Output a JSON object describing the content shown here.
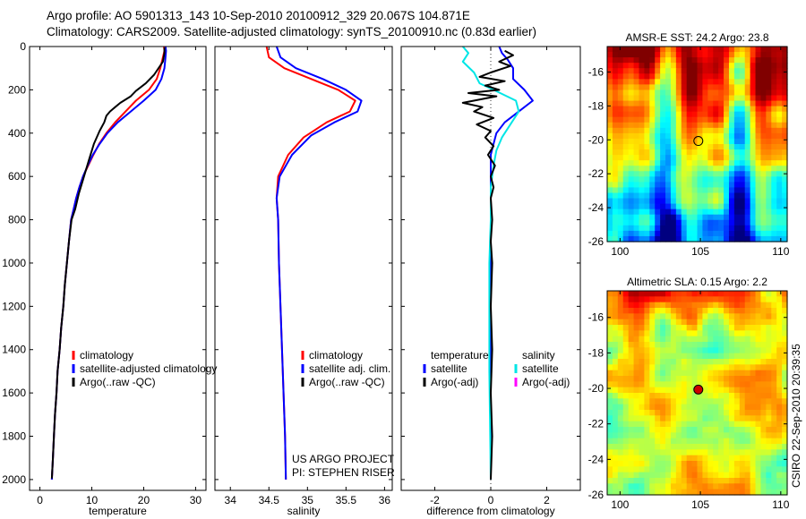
{
  "header": {
    "line1": "Argo profile: AO 5901313_143 10-Sep-2010 20100912_329 20.067S 104.871E",
    "line2": "Climatology: CARS2009. Satellite-adjusted climatology: synTS_20100910.nc (0.83d earlier)"
  },
  "footer_stamp": "CSIRO 22-Sep-2010 20:39:35",
  "colors": {
    "red": "#ff0000",
    "blue": "#0000ff",
    "black": "#000000",
    "cyan": "#00e6e6",
    "magenta": "#ff00ff"
  },
  "chart_data": [
    {
      "type": "line",
      "name": "temperature-profile",
      "xlabel": "temperature",
      "ylabel": "",
      "xlim": [
        -2,
        32
      ],
      "ylim": [
        2050,
        0
      ],
      "y_reversed": true,
      "xticks": [
        0,
        10,
        20,
        30
      ],
      "yticks": [
        0,
        200,
        400,
        600,
        800,
        1000,
        1200,
        1400,
        1600,
        1800,
        2000
      ],
      "legend": {
        "position": "lower-right",
        "entries": [
          {
            "label": "climatology",
            "color": "#ff0000"
          },
          {
            "label": "satellite-adjusted climatology",
            "color": "#0000ff"
          },
          {
            "label": "Argo(..raw -QC)",
            "color": "#000000"
          }
        ]
      },
      "series": [
        {
          "name": "climatology",
          "color": "#ff0000",
          "points": [
            [
              23.9,
              0
            ],
            [
              24.0,
              20
            ],
            [
              23.7,
              50
            ],
            [
              23.2,
              100
            ],
            [
              22.5,
              150
            ],
            [
              21.0,
              200
            ],
            [
              18.5,
              250
            ],
            [
              16.5,
              300
            ],
            [
              14.5,
              350
            ],
            [
              12.8,
              400
            ],
            [
              11.4,
              450
            ],
            [
              10.3,
              500
            ],
            [
              9.3,
              550
            ],
            [
              8.3,
              600
            ],
            [
              7.6,
              650
            ],
            [
              7.0,
              700
            ],
            [
              6.5,
              750
            ],
            [
              6.0,
              800
            ],
            [
              5.6,
              900
            ],
            [
              5.2,
              1000
            ],
            [
              4.8,
              1100
            ],
            [
              4.5,
              1200
            ],
            [
              4.1,
              1300
            ],
            [
              3.8,
              1400
            ],
            [
              3.4,
              1500
            ],
            [
              3.2,
              1600
            ],
            [
              2.9,
              1700
            ],
            [
              2.7,
              1800
            ],
            [
              2.5,
              1900
            ],
            [
              2.3,
              2000
            ]
          ]
        },
        {
          "name": "satellite-adjusted climatology",
          "color": "#0000ff",
          "points": [
            [
              24.2,
              0
            ],
            [
              24.3,
              20
            ],
            [
              24.2,
              50
            ],
            [
              24.0,
              100
            ],
            [
              23.4,
              150
            ],
            [
              22.3,
              200
            ],
            [
              20.0,
              250
            ],
            [
              17.5,
              300
            ],
            [
              15.0,
              350
            ],
            [
              13.0,
              400
            ],
            [
              11.5,
              450
            ],
            [
              10.2,
              500
            ],
            [
              9.2,
              550
            ],
            [
              8.3,
              600
            ],
            [
              7.6,
              650
            ],
            [
              7.0,
              700
            ],
            [
              6.5,
              750
            ],
            [
              6.0,
              800
            ],
            [
              5.6,
              900
            ],
            [
              5.2,
              1000
            ],
            [
              4.8,
              1100
            ],
            [
              4.5,
              1200
            ],
            [
              4.1,
              1300
            ],
            [
              3.8,
              1400
            ],
            [
              3.4,
              1500
            ],
            [
              3.2,
              1600
            ],
            [
              2.9,
              1700
            ],
            [
              2.7,
              1800
            ],
            [
              2.5,
              1900
            ],
            [
              2.3,
              2000
            ]
          ]
        },
        {
          "name": "Argo(..raw -QC)",
          "color": "#000000",
          "points": [
            [
              24.0,
              5
            ],
            [
              24.0,
              30
            ],
            [
              23.7,
              70
            ],
            [
              22.0,
              130
            ],
            [
              20.4,
              170
            ],
            [
              18.5,
              205
            ],
            [
              17.5,
              230
            ],
            [
              15.5,
              260
            ],
            [
              14.5,
              280
            ],
            [
              13.5,
              300
            ],
            [
              12.8,
              320
            ],
            [
              12.4,
              350
            ],
            [
              11.5,
              390
            ],
            [
              10.4,
              450
            ],
            [
              9.5,
              520
            ],
            [
              8.5,
              600
            ],
            [
              7.5,
              680
            ],
            [
              6.8,
              750
            ],
            [
              6.1,
              800
            ],
            [
              5.6,
              900
            ],
            [
              5.2,
              1000
            ],
            [
              4.8,
              1100
            ],
            [
              4.5,
              1200
            ],
            [
              4.1,
              1300
            ],
            [
              3.8,
              1400
            ],
            [
              3.4,
              1500
            ],
            [
              3.2,
              1600
            ],
            [
              2.9,
              1700
            ],
            [
              2.7,
              1800
            ],
            [
              2.5,
              1900
            ],
            [
              2.3,
              1995
            ]
          ]
        }
      ]
    },
    {
      "type": "line",
      "name": "salinity-profile",
      "xlabel": "salinity",
      "ylabel": "",
      "xlim": [
        33.8,
        36.1
      ],
      "ylim": [
        2050,
        0
      ],
      "y_reversed": true,
      "xticks": [
        34,
        34.5,
        35,
        35.5,
        36
      ],
      "yticks": [],
      "legend": {
        "position": "lower-right",
        "entries": [
          {
            "label": "climatology",
            "color": "#ff0000"
          },
          {
            "label": "satellite adj. clim.",
            "color": "#0000ff"
          },
          {
            "label": "Argo(..raw -QC)",
            "color": "#000000"
          }
        ]
      },
      "annotation_lines": [
        "US ARGO PROJECT",
        "PI: STEPHEN RISER"
      ],
      "series": [
        {
          "name": "climatology",
          "color": "#ff0000",
          "points": [
            [
              34.47,
              0
            ],
            [
              34.5,
              50
            ],
            [
              34.7,
              100
            ],
            [
              35.05,
              150
            ],
            [
              35.4,
              200
            ],
            [
              35.62,
              250
            ],
            [
              35.55,
              300
            ],
            [
              35.25,
              350
            ],
            [
              34.95,
              420
            ],
            [
              34.75,
              500
            ],
            [
              34.62,
              600
            ],
            [
              34.6,
              700
            ],
            [
              34.62,
              800
            ],
            [
              34.63,
              1000
            ],
            [
              34.65,
              1200
            ],
            [
              34.67,
              1400
            ],
            [
              34.69,
              1600
            ],
            [
              34.71,
              1800
            ],
            [
              34.72,
              2000
            ]
          ]
        },
        {
          "name": "satellite adjusted climatology",
          "color": "#0000ff",
          "points": [
            [
              34.6,
              0
            ],
            [
              34.65,
              50
            ],
            [
              34.85,
              100
            ],
            [
              35.2,
              150
            ],
            [
              35.5,
              200
            ],
            [
              35.7,
              250
            ],
            [
              35.65,
              300
            ],
            [
              35.35,
              350
            ],
            [
              35.05,
              410
            ],
            [
              34.8,
              500
            ],
            [
              34.64,
              600
            ],
            [
              34.6,
              700
            ],
            [
              34.62,
              800
            ],
            [
              34.63,
              1000
            ],
            [
              34.65,
              1200
            ],
            [
              34.67,
              1400
            ],
            [
              34.69,
              1600
            ],
            [
              34.71,
              1800
            ],
            [
              34.72,
              2000
            ]
          ]
        }
      ]
    },
    {
      "type": "line",
      "name": "difference-profile",
      "xlabel": "difference from climatology",
      "ylabel": "",
      "xlim": [
        -3.2,
        3.2
      ],
      "ylim": [
        2050,
        0
      ],
      "y_reversed": true,
      "xticks": [
        -2,
        0,
        2
      ],
      "yticks": [],
      "legend": {
        "position": "lower",
        "entries": [
          {
            "label": "temperature",
            "color": ""
          },
          {
            "label": "satellite",
            "color": "#0000ff"
          },
          {
            "label": "Argo(-adj)",
            "color": "#000000"
          },
          {
            "label": "salinity",
            "color": ""
          },
          {
            "label": "satellite",
            "color": "#00e6e6"
          },
          {
            "label": "Argo(-adj)",
            "color": "#ff00ff"
          }
        ]
      },
      "series": [
        {
          "name": "temperature satellite",
          "color": "#0000ff",
          "points": [
            [
              0.3,
              0
            ],
            [
              0.4,
              30
            ],
            [
              0.6,
              60
            ],
            [
              0.8,
              100
            ],
            [
              0.8,
              150
            ],
            [
              1.2,
              200
            ],
            [
              1.5,
              250
            ],
            [
              1.0,
              300
            ],
            [
              0.5,
              350
            ],
            [
              0.2,
              400
            ],
            [
              0.1,
              450
            ],
            [
              0.0,
              500
            ],
            [
              0.0,
              600
            ],
            [
              0.0,
              700
            ],
            [
              0.0,
              1000
            ],
            [
              0.0,
              1500
            ],
            [
              0.0,
              2000
            ]
          ]
        },
        {
          "name": "salinity satellite",
          "color": "#00e6e6",
          "points": [
            [
              -1.0,
              0
            ],
            [
              -0.8,
              30
            ],
            [
              -1.0,
              70
            ],
            [
              -0.6,
              120
            ],
            [
              -0.4,
              170
            ],
            [
              0.1,
              200
            ],
            [
              0.9,
              250
            ],
            [
              1.0,
              300
            ],
            [
              0.7,
              360
            ],
            [
              0.4,
              420
            ],
            [
              0.2,
              480
            ],
            [
              0.1,
              550
            ],
            [
              0.0,
              650
            ],
            [
              0.0,
              800
            ],
            [
              -0.05,
              1000
            ],
            [
              -0.05,
              1500
            ],
            [
              0.0,
              2000
            ]
          ]
        },
        {
          "name": "temperature Argo(-adj)",
          "color": "#000000",
          "points": [
            [
              0.5,
              20
            ],
            [
              0.8,
              40
            ],
            [
              0.3,
              70
            ],
            [
              0.7,
              90
            ],
            [
              0.0,
              120
            ],
            [
              -0.4,
              140
            ],
            [
              0.5,
              160
            ],
            [
              -0.2,
              180
            ],
            [
              0.3,
              200
            ],
            [
              -0.8,
              215
            ],
            [
              0.2,
              230
            ],
            [
              -1.0,
              260
            ],
            [
              -0.3,
              280
            ],
            [
              -0.6,
              300
            ],
            [
              0.1,
              330
            ],
            [
              -0.5,
              360
            ],
            [
              0.0,
              390
            ],
            [
              -0.2,
              420
            ],
            [
              0.1,
              460
            ],
            [
              -0.1,
              500
            ],
            [
              0.15,
              550
            ],
            [
              0.0,
              600
            ],
            [
              0.1,
              650
            ],
            [
              0.0,
              700
            ],
            [
              0.05,
              800
            ],
            [
              0.0,
              900
            ],
            [
              0.05,
              1000
            ],
            [
              0.0,
              1200
            ],
            [
              0.05,
              1400
            ],
            [
              0.0,
              1600
            ],
            [
              0.05,
              1800
            ],
            [
              0.0,
              2000
            ]
          ]
        }
      ]
    },
    {
      "type": "heatmap",
      "name": "sst-map",
      "title": "AMSR-E SST: 24.2 Argo: 23.8",
      "xlim": [
        99.2,
        110.4
      ],
      "ylim": [
        -26,
        -14.5
      ],
      "xticks": [
        100,
        105,
        110
      ],
      "yticks": [
        -16,
        -18,
        -20,
        -22,
        -24,
        -26
      ],
      "marker": {
        "lon": 104.871,
        "lat": -20.067,
        "fill": "none"
      }
    },
    {
      "type": "heatmap",
      "name": "sla-map",
      "title": "Altimetric SLA: 0.15 Argo: 2.2",
      "xlim": [
        99.2,
        110.4
      ],
      "ylim": [
        -26,
        -14.5
      ],
      "xticks": [
        100,
        105,
        110
      ],
      "yticks": [
        -16,
        -18,
        -20,
        -22,
        -24,
        -26
      ],
      "marker": {
        "lon": 104.871,
        "lat": -20.067,
        "fill": "#cc0000"
      }
    }
  ]
}
